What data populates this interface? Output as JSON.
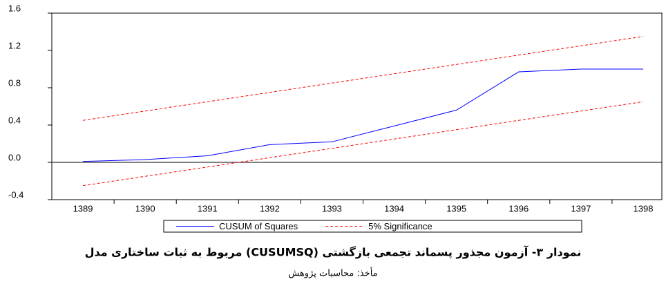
{
  "chart_data": {
    "type": "line",
    "categories": [
      "1389",
      "1390",
      "1391",
      "1392",
      "1393",
      "1394",
      "1395",
      "1396",
      "1397",
      "1398"
    ],
    "series": [
      {
        "name": "CUSUM of Squares",
        "color": "#0000ff",
        "dash": false,
        "values": [
          0.01,
          0.03,
          0.07,
          0.19,
          0.22,
          0.39,
          0.56,
          0.97,
          1.0,
          1.0
        ]
      },
      {
        "name": "5% Significance",
        "color": "#ff0000",
        "dash": true,
        "values": [
          0.45,
          0.55,
          0.65,
          0.75,
          0.85,
          0.95,
          1.05,
          1.15,
          1.25,
          1.35
        ]
      },
      {
        "name": null,
        "color": "#ff0000",
        "dash": true,
        "values": [
          -0.25,
          -0.15,
          -0.05,
          0.05,
          0.15,
          0.25,
          0.35,
          0.45,
          0.55,
          0.65
        ]
      }
    ],
    "ylim": [
      -0.4,
      1.6
    ],
    "yticks": [
      -0.4,
      {
        "value": 0,
        "label": "0.0"
      },
      0.4,
      0.8,
      1.2,
      1.6
    ],
    "caption": "نمودار ۳- آزمون مجذور پسماند تجمعی بازگشتی (CUSUMSQ) مربوط به ثبات ساختاری مدل",
    "source": "مأخذ: محاسبات پژوهش"
  }
}
